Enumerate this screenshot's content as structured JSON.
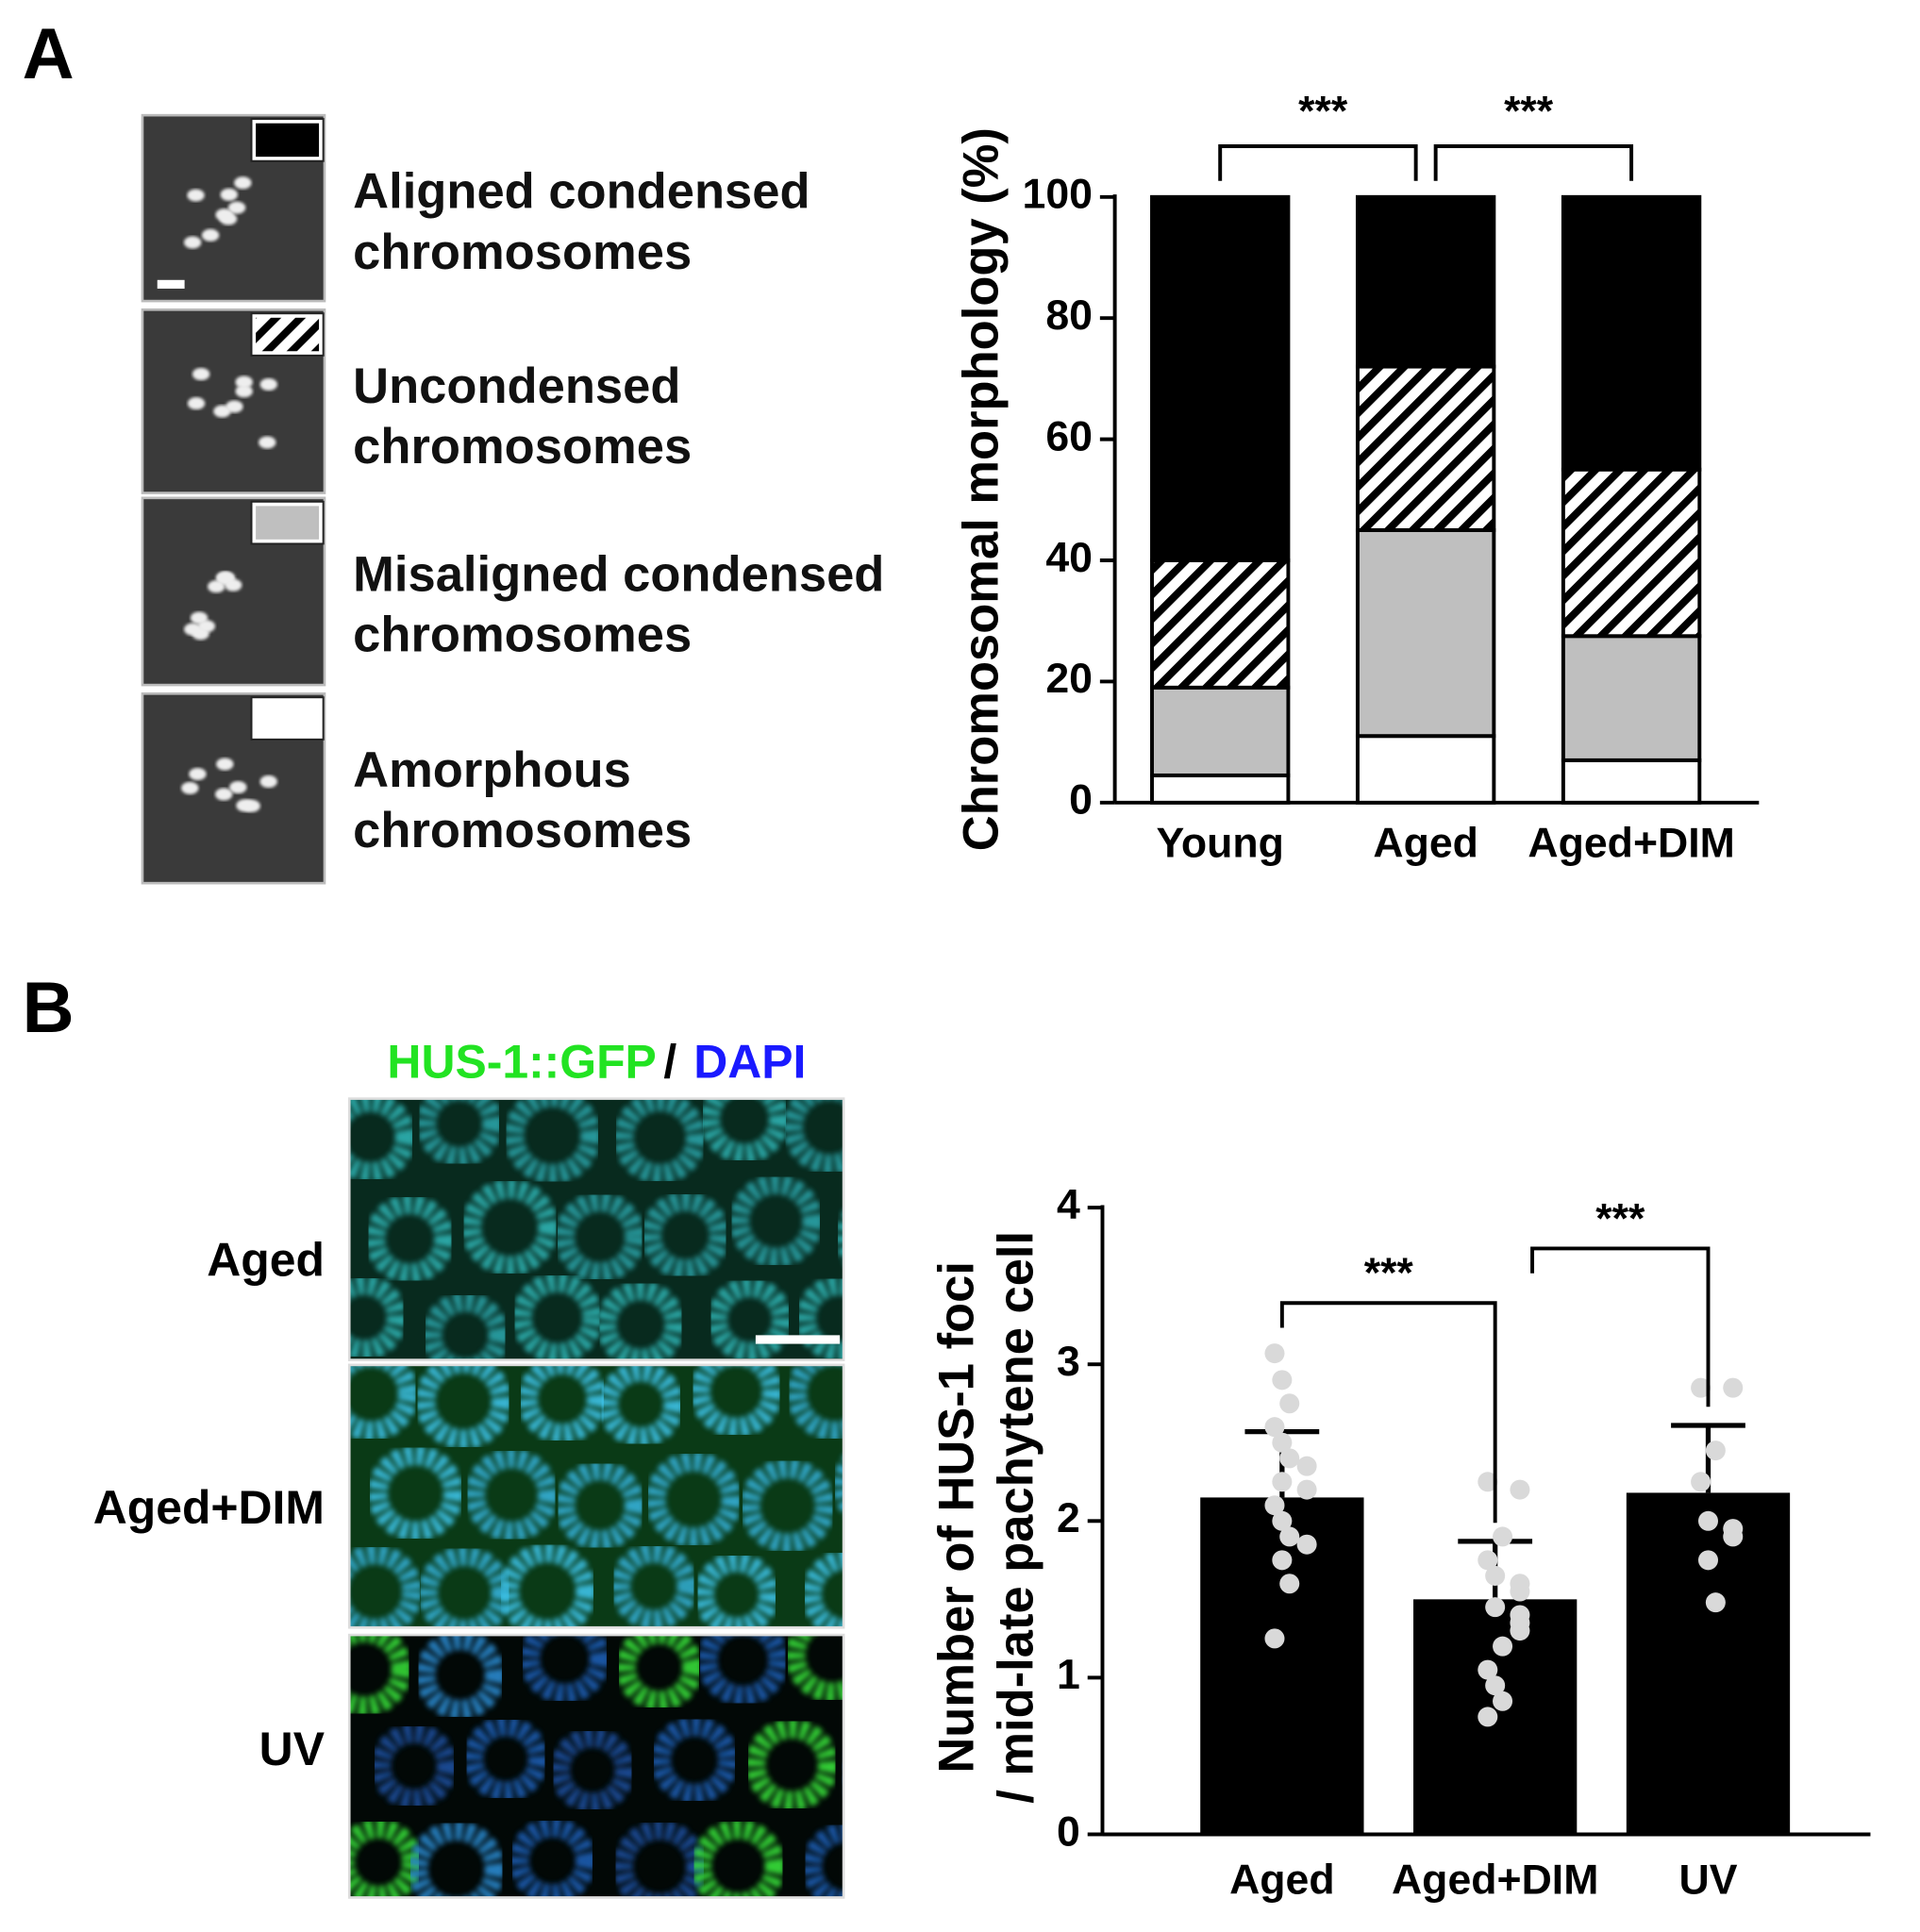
{
  "panel_a": {
    "label": "A"
  },
  "panel_b": {
    "label": "B",
    "stain_title": [
      "HUS-1::GFP",
      "/",
      "DAPI"
    ],
    "stain_colors": [
      "#22e322",
      "#000000",
      "#1a1aff"
    ],
    "image_labels": [
      "Aged",
      "Aged+DIM",
      "UV"
    ]
  },
  "chart_data": [
    {
      "type": "stacked_bar",
      "y_label": "Chromosomal morphology (%)",
      "categories": [
        "Young",
        "Aged",
        "Aged+DIM"
      ],
      "series": [
        {
          "name": "Amorphous chromosomes",
          "color": "#ffffff",
          "values": [
            4.5,
            11,
            7
          ]
        },
        {
          "name": "Misaligned condensed chromosomes",
          "color": "#bfbfbf",
          "values": [
            14.5,
            34,
            20.5
          ]
        },
        {
          "name": "Uncondensed chromosomes",
          "color": "#000000",
          "hatch": true,
          "values": [
            21,
            27,
            27.5
          ]
        },
        {
          "name": "Aligned condensed chromosomes",
          "color": "#000000",
          "values": [
            60,
            28,
            45
          ]
        }
      ],
      "ylim": [
        0,
        100
      ],
      "yticks": [
        0,
        20,
        40,
        60,
        80,
        100
      ],
      "annotations": [
        "***",
        "***"
      ]
    },
    {
      "type": "bar_points",
      "y_label": [
        "Number of HUS-1 foci",
        "/ mid-late pachytene cell"
      ],
      "categories": [
        "Aged",
        "Aged+DIM",
        "UV"
      ],
      "color": "#000000",
      "point_color": "#d9d9d9",
      "values": [
        2.15,
        1.5,
        2.18
      ],
      "errors": [
        0.42,
        0.37,
        0.43
      ],
      "points": [
        [
          3.07,
          2.9,
          2.75,
          2.6,
          2.5,
          2.4,
          2.35,
          2.25,
          2.2,
          2.1,
          2.0,
          1.9,
          1.85,
          1.75,
          1.6,
          1.25
        ],
        [
          2.25,
          2.2,
          1.9,
          1.75,
          1.65,
          1.6,
          1.55,
          1.45,
          1.4,
          1.35,
          1.3,
          1.2,
          1.05,
          0.95,
          0.85,
          0.75
        ],
        [
          2.85,
          2.85,
          2.45,
          2.25,
          2.0,
          1.95,
          1.9,
          1.75,
          1.48
        ]
      ],
      "ylim": [
        0,
        4
      ],
      "yticks": [
        0,
        1,
        2,
        3,
        4
      ],
      "annotations": [
        "***",
        "***"
      ]
    }
  ]
}
